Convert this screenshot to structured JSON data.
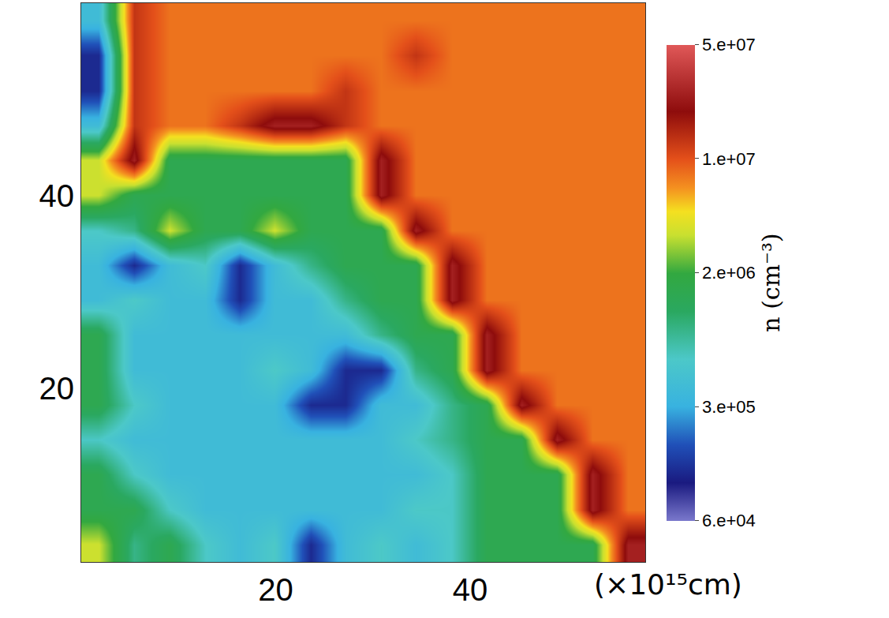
{
  "chart_data": {
    "type": "heatmap",
    "xlabel": "(×10¹⁵cm)",
    "xlim": [
      0,
      58
    ],
    "ylim": [
      2,
      60
    ],
    "xticks": [
      20,
      40
    ],
    "yticks": [
      20,
      40
    ],
    "grid": false,
    "x": [
      1.8,
      5.4,
      9.1,
      12.7,
      16.3,
      19.9,
      23.6,
      27.2,
      30.8,
      34.4,
      38.1,
      41.7,
      45.3,
      48.9,
      52.6,
      56.2
    ],
    "y": [
      3.8,
      7.4,
      11.1,
      14.7,
      18.3,
      21.9,
      25.6,
      29.2,
      32.8,
      36.4,
      40.1,
      43.7,
      47.3,
      50.9,
      54.6,
      58.2
    ],
    "z": [
      [
        3500000,
        900000,
        1500000,
        600000,
        400000,
        600000,
        120000,
        400000,
        600000,
        400000,
        600000,
        1500000,
        1500000,
        1500000,
        1500000,
        25000000
      ],
      [
        1500000,
        1500000,
        600000,
        400000,
        400000,
        400000,
        400000,
        400000,
        400000,
        600000,
        600000,
        1500000,
        1500000,
        1500000,
        25000000,
        8000000
      ],
      [
        1500000,
        600000,
        400000,
        400000,
        400000,
        400000,
        400000,
        400000,
        400000,
        400000,
        600000,
        1500000,
        1500000,
        1500000,
        25000000,
        8000000
      ],
      [
        600000,
        400000,
        400000,
        400000,
        400000,
        400000,
        400000,
        400000,
        400000,
        600000,
        900000,
        1500000,
        1500000,
        25000000,
        8000000,
        8000000
      ],
      [
        1500000,
        600000,
        400000,
        400000,
        400000,
        400000,
        120000,
        120000,
        400000,
        400000,
        900000,
        1500000,
        25000000,
        8000000,
        8000000,
        8000000
      ],
      [
        1500000,
        400000,
        400000,
        400000,
        400000,
        600000,
        400000,
        120000,
        120000,
        900000,
        1500000,
        25000000,
        8000000,
        8000000,
        8000000,
        8000000
      ],
      [
        1500000,
        400000,
        400000,
        400000,
        400000,
        400000,
        400000,
        400000,
        900000,
        1500000,
        1500000,
        25000000,
        8000000,
        8000000,
        8000000,
        8000000
      ],
      [
        400000,
        600000,
        400000,
        400000,
        120000,
        400000,
        400000,
        900000,
        1500000,
        1500000,
        25000000,
        8000000,
        8000000,
        8000000,
        8000000,
        8000000
      ],
      [
        400000,
        120000,
        400000,
        600000,
        120000,
        400000,
        900000,
        1500000,
        1500000,
        1500000,
        25000000,
        8000000,
        8000000,
        8000000,
        8000000,
        8000000
      ],
      [
        600000,
        900000,
        3500000,
        1500000,
        1500000,
        3500000,
        1500000,
        1500000,
        1500000,
        25000000,
        8000000,
        8000000,
        8000000,
        8000000,
        8000000,
        8000000
      ],
      [
        3500000,
        1500000,
        1500000,
        1500000,
        1500000,
        1500000,
        1500000,
        1500000,
        25000000,
        8000000,
        8000000,
        8000000,
        8000000,
        8000000,
        8000000,
        8000000
      ],
      [
        3500000,
        25000000,
        1500000,
        1500000,
        1500000,
        1500000,
        1500000,
        1500000,
        25000000,
        8000000,
        8000000,
        8000000,
        8000000,
        8000000,
        8000000,
        8000000
      ],
      [
        400000,
        13000000,
        8000000,
        8000000,
        13000000,
        25000000,
        25000000,
        13000000,
        8000000,
        8000000,
        8000000,
        8000000,
        8000000,
        8000000,
        8000000,
        8000000
      ],
      [
        120000,
        13000000,
        8000000,
        8000000,
        8000000,
        8000000,
        8000000,
        13000000,
        8000000,
        8000000,
        8000000,
        8000000,
        8000000,
        8000000,
        8000000,
        8000000
      ],
      [
        120000,
        13000000,
        8000000,
        8000000,
        8000000,
        8000000,
        8000000,
        8000000,
        8000000,
        13000000,
        8000000,
        8000000,
        8000000,
        8000000,
        8000000,
        8000000
      ],
      [
        400000,
        13000000,
        8000000,
        8000000,
        8000000,
        8000000,
        8000000,
        8000000,
        8000000,
        8000000,
        8000000,
        8000000,
        8000000,
        8000000,
        8000000,
        8000000
      ]
    ],
    "colorbar": {
      "title": "n (cm⁻³)",
      "log": true,
      "range": [
        60000,
        50000000
      ],
      "ticks": [
        {
          "value": 60000,
          "label": "6.e+04"
        },
        {
          "value": 300000,
          "label": "3.e+05"
        },
        {
          "value": 2000000,
          "label": "2.e+06"
        },
        {
          "value": 10000000,
          "label": "1.e+07"
        },
        {
          "value": 50000000,
          "label": "5.e+07"
        }
      ]
    }
  }
}
